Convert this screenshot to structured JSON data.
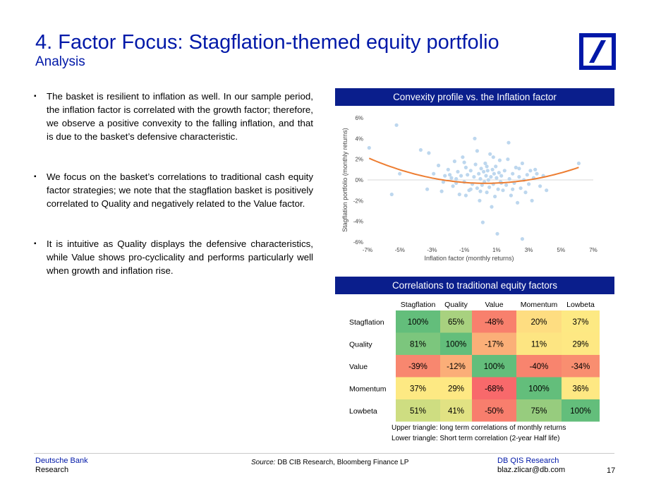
{
  "header": {
    "title": "4. Factor Focus: Stagflation-themed equity portfolio",
    "subtitle": "Analysis"
  },
  "logo": {
    "name": "deutsche-bank-logo",
    "color": "#0018a8"
  },
  "bullets": [
    {
      "marker": "▪",
      "text": "The basket is resilient to inflation as well. In our sample period, the inflation factor is correlated with the growth factor; therefore, we observe a positive convexity to the falling inflation, and that is due to the basket’s defensive characteristic."
    },
    {
      "marker": "▪",
      "text": "We focus on the basket’s correlations to traditional cash equity factor strategies; we note that the stagflation basket is positively correlated to Quality and negatively related to the Value factor."
    },
    {
      "marker": "▪",
      "text": "It is intuitive as Quality displays the defensive characteristics, while Value shows pro-cyclicality and performs particularly well when growth and inflation rise."
    }
  ],
  "panels": {
    "convexity_title": "Convexity profile vs. the Inflation factor",
    "correlation_title": "Correlations to traditional equity factors"
  },
  "chart_data": [
    {
      "type": "scatter",
      "title": "Convexity profile vs. the Inflation factor",
      "xlabel": "Inflation factor (monthly returns)",
      "ylabel": "Stagflation portfolio (monthly returns)",
      "xlim": [
        -7,
        7
      ],
      "ylim": [
        -6,
        6
      ],
      "x_ticks": [
        "-7%",
        "-5%",
        "-3%",
        "-1%",
        "1%",
        "3%",
        "5%",
        "7%"
      ],
      "y_ticks": [
        "6%",
        "4%",
        "2%",
        "0%",
        "-2%",
        "-4%",
        "-6%"
      ],
      "point_color": "#bdd7ee",
      "fit_color": "#ed7d31",
      "fit": {
        "kind": "quadratic",
        "a": 0.0462,
        "b": -0.0305,
        "c": -0.32
      },
      "points": [
        [
          -6.9,
          3.1
        ],
        [
          -5.2,
          5.3
        ],
        [
          -5.5,
          -1.4
        ],
        [
          -5.0,
          0.6
        ],
        [
          -3.7,
          2.9
        ],
        [
          -3.2,
          2.6
        ],
        [
          -2.9,
          0.6
        ],
        [
          -2.6,
          1.4
        ],
        [
          -2.4,
          -1.1
        ],
        [
          -2.2,
          0.4
        ],
        [
          -2.0,
          1.0
        ],
        [
          -1.8,
          0.2
        ],
        [
          -1.7,
          -0.6
        ],
        [
          -1.6,
          1.8
        ],
        [
          -1.5,
          -0.3
        ],
        [
          -1.4,
          0.8
        ],
        [
          -1.3,
          -1.4
        ],
        [
          -1.2,
          0.4
        ],
        [
          -1.1,
          2.2
        ],
        [
          -1.0,
          -0.2
        ],
        [
          -0.9,
          1.2
        ],
        [
          -0.8,
          0.5
        ],
        [
          -0.7,
          -1.0
        ],
        [
          -0.6,
          0.9
        ],
        [
          -0.5,
          -0.4
        ],
        [
          -0.4,
          0.3
        ],
        [
          -0.35,
          4.0
        ],
        [
          -0.3,
          1.5
        ],
        [
          -0.2,
          -0.8
        ],
        [
          -0.1,
          0.6
        ],
        [
          -0.05,
          -2.0
        ],
        [
          0.0,
          0.1
        ],
        [
          0.05,
          1.1
        ],
        [
          0.1,
          -0.5
        ],
        [
          0.15,
          -4.1
        ],
        [
          0.2,
          0.8
        ],
        [
          0.25,
          -0.2
        ],
        [
          0.3,
          1.6
        ],
        [
          0.35,
          0.4
        ],
        [
          0.4,
          -1.2
        ],
        [
          0.45,
          0.9
        ],
        [
          0.5,
          0.0
        ],
        [
          0.55,
          -0.7
        ],
        [
          0.6,
          2.5
        ],
        [
          0.65,
          0.3
        ],
        [
          0.7,
          -2.6
        ],
        [
          0.75,
          1.0
        ],
        [
          0.8,
          -0.4
        ],
        [
          0.85,
          0.6
        ],
        [
          0.9,
          -1.6
        ],
        [
          0.95,
          1.3
        ],
        [
          1.0,
          0.2
        ],
        [
          1.05,
          -5.2
        ],
        [
          1.1,
          -0.9
        ],
        [
          1.15,
          0.7
        ],
        [
          1.2,
          1.9
        ],
        [
          1.25,
          -0.2
        ],
        [
          1.3,
          0.4
        ],
        [
          1.4,
          -1.0
        ],
        [
          1.5,
          0.9
        ],
        [
          1.6,
          -0.5
        ],
        [
          1.7,
          2.0
        ],
        [
          1.75,
          3.6
        ],
        [
          1.8,
          0.1
        ],
        [
          1.9,
          -1.5
        ],
        [
          2.0,
          0.6
        ],
        [
          2.1,
          -0.3
        ],
        [
          2.2,
          1.2
        ],
        [
          2.3,
          -2.2
        ],
        [
          2.4,
          0.3
        ],
        [
          2.5,
          -0.8
        ],
        [
          2.6,
          1.6
        ],
        [
          2.7,
          0.0
        ],
        [
          2.8,
          -1.2
        ],
        [
          2.9,
          0.5
        ],
        [
          3.0,
          -0.4
        ],
        [
          3.1,
          0.9
        ],
        [
          3.2,
          -2.0
        ],
        [
          3.3,
          0.2
        ],
        [
          3.5,
          0.6
        ],
        [
          3.7,
          -0.6
        ],
        [
          3.9,
          0.4
        ],
        [
          4.1,
          -1.0
        ],
        [
          2.6,
          -5.7
        ],
        [
          6.1,
          1.6
        ],
        [
          -1.9,
          0.5
        ],
        [
          -2.3,
          -0.2
        ],
        [
          -0.6,
          -0.9
        ],
        [
          -1.5,
          0.1
        ],
        [
          -0.9,
          -1.5
        ],
        [
          0.0,
          -1.1
        ],
        [
          0.4,
          1.3
        ],
        [
          1.3,
          -0.3
        ],
        [
          2.0,
          -0.9
        ],
        [
          2.4,
          1.1
        ],
        [
          -3.3,
          -0.9
        ],
        [
          -1.0,
          1.7
        ],
        [
          -0.2,
          2.8
        ],
        [
          0.8,
          2.2
        ],
        [
          3.4,
          1.0
        ]
      ]
    },
    {
      "type": "table",
      "title": "Correlations to traditional equity factors",
      "columns": [
        "Stagflation",
        "Quality",
        "Value",
        "Momentum",
        "Lowbeta"
      ],
      "rows": [
        "Stagflation",
        "Quality",
        "Value",
        "Momentum",
        "Lowbeta"
      ],
      "values": [
        [
          100,
          65,
          -48,
          20,
          37
        ],
        [
          81,
          100,
          -17,
          11,
          29
        ],
        [
          -39,
          -12,
          100,
          -40,
          -34
        ],
        [
          37,
          29,
          -68,
          100,
          36
        ],
        [
          51,
          41,
          -50,
          75,
          100
        ]
      ],
      "cell_colors": [
        [
          "#63be7b",
          "#a8d17f",
          "#f8806d",
          "#fedd81",
          "#fde983"
        ],
        [
          "#7cc67d",
          "#63be7b",
          "#fbaf78",
          "#fde582",
          "#fee883"
        ],
        [
          "#f8876f",
          "#fbae78",
          "#63be7b",
          "#f8846e",
          "#f98e70"
        ],
        [
          "#fde983",
          "#fee883",
          "#f8696b",
          "#63be7b",
          "#fee883"
        ],
        [
          "#cedd81",
          "#e1e283",
          "#f87e6d",
          "#97cc7e",
          "#63be7b"
        ]
      ],
      "notes": [
        "Upper triangle: long term correlations of monthly returns",
        "Lower triangle: Short term correlation (2-year Half life)"
      ]
    }
  ],
  "footer": {
    "left_line1": "Deutsche Bank",
    "left_line2": "Research",
    "source_label": "Source:",
    "source_text": " DB CIB Research, Bloomberg Finance LP",
    "right_line1": "DB QIS Research",
    "right_line2": "blaz.zlicar@db.com",
    "page": "17"
  }
}
